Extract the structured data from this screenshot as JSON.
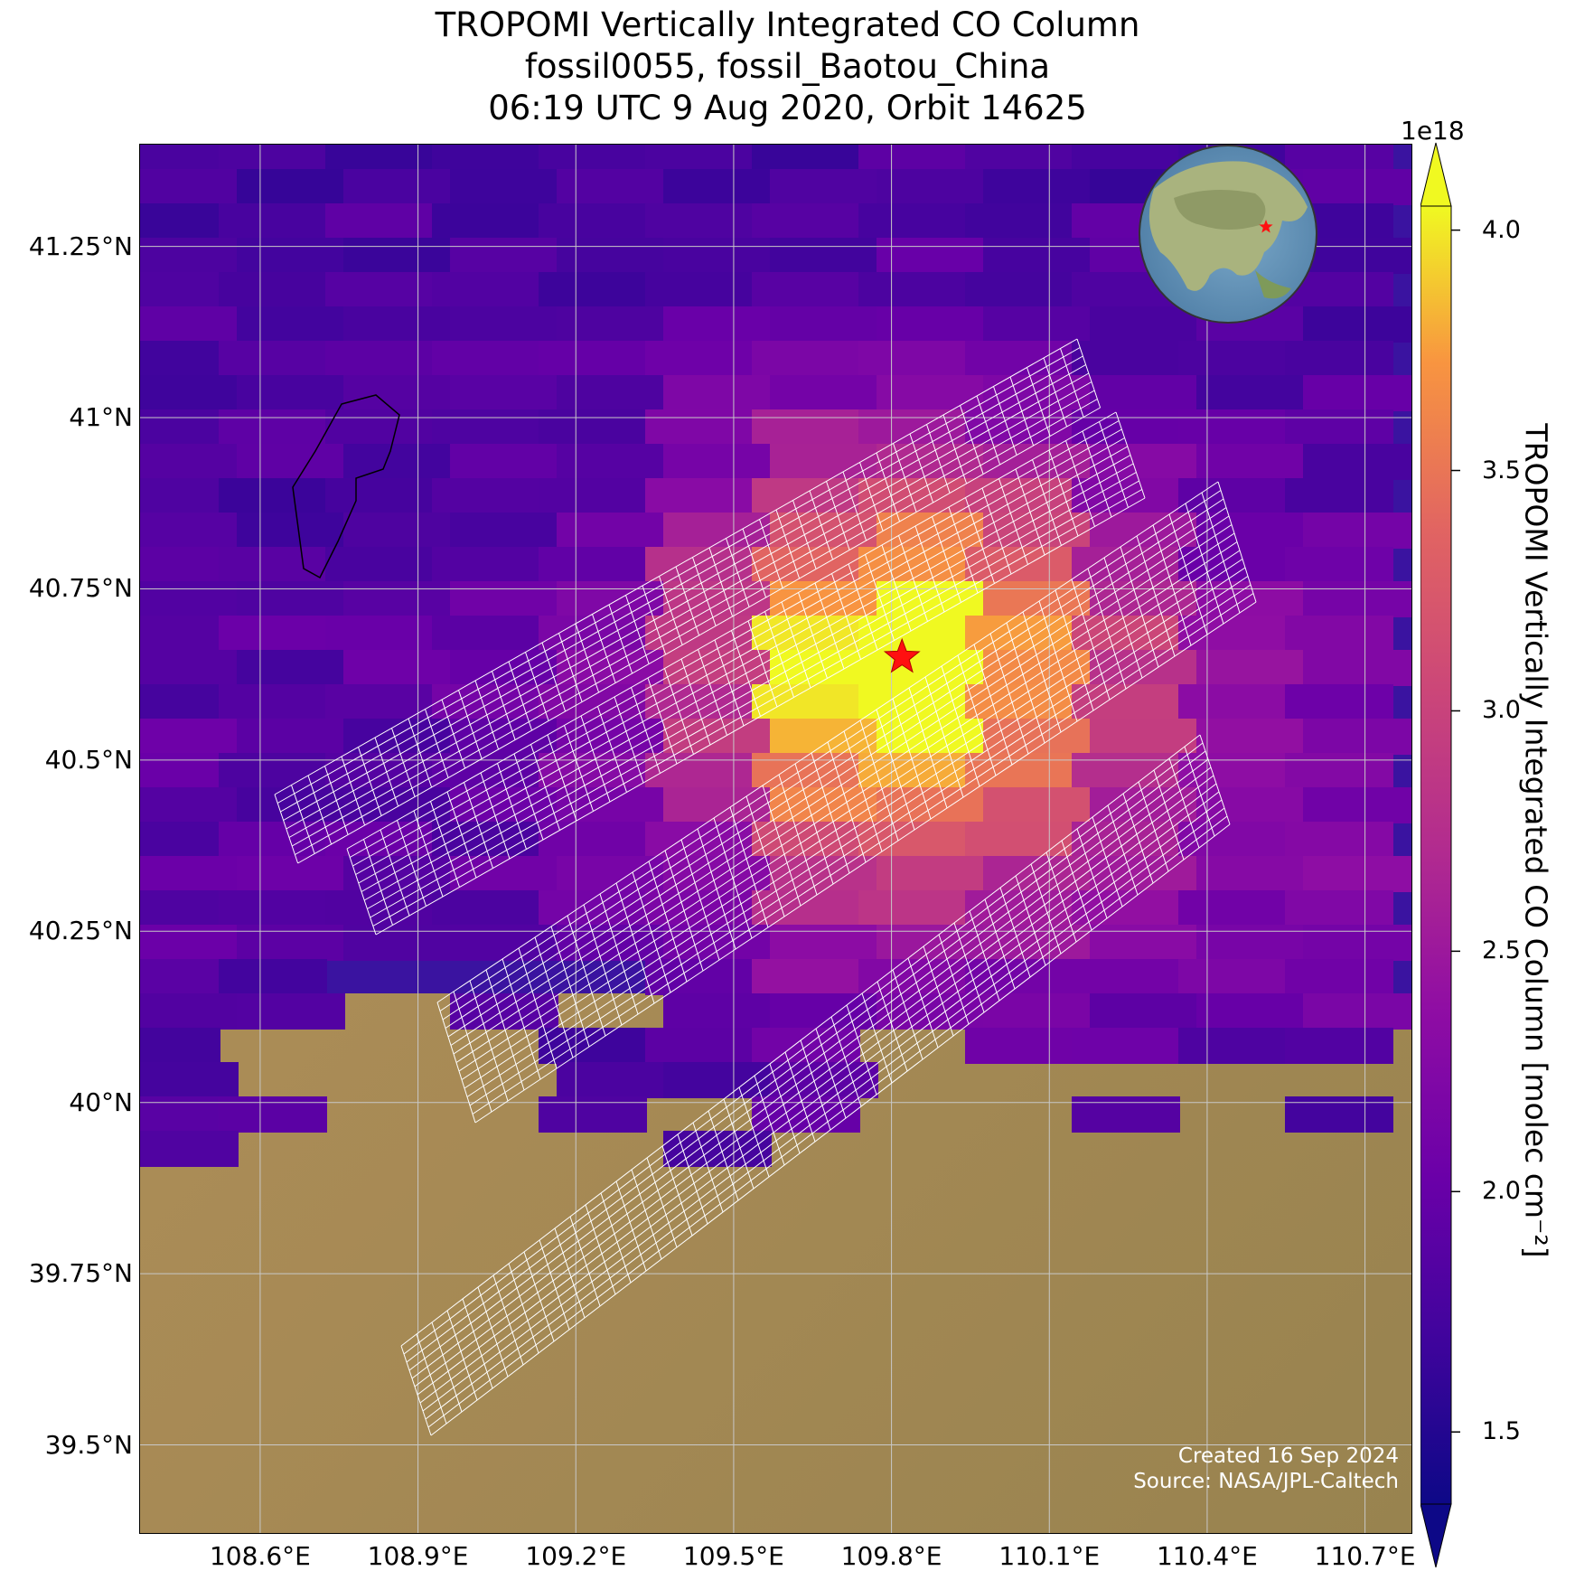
{
  "title": {
    "line1": "TROPOMI Vertically Integrated CO Column",
    "line2": "fossil0055, fossil_Baotou_China",
    "line3": "06:19 UTC 9 Aug 2020, Orbit 14625"
  },
  "map": {
    "lon_range": [
      108.37,
      110.79
    ],
    "lat_range": [
      39.37,
      41.4
    ],
    "lat_ticks": [
      "41.25°N",
      "41°N",
      "40.75°N",
      "40.5°N",
      "40.25°N",
      "40°N",
      "39.75°N",
      "39.5°N"
    ],
    "lat_values": [
      41.25,
      41.0,
      40.75,
      40.5,
      40.25,
      40.0,
      39.75,
      39.5
    ],
    "lon_ticks": [
      "108.6°E",
      "108.9°E",
      "109.2°E",
      "109.5°E",
      "109.8°E",
      "110.1°E",
      "110.4°E",
      "110.7°E"
    ],
    "lon_values": [
      108.6,
      108.9,
      109.2,
      109.5,
      109.8,
      110.1,
      110.4,
      110.7
    ],
    "target": {
      "lon": 109.82,
      "lat": 40.65,
      "marker": "red-star-icon"
    },
    "gridline_color": "#c8c8c8",
    "grid": true
  },
  "credit": {
    "created": "Created 16 Sep 2024",
    "source": "Source: NASA/JPL-Caltech"
  },
  "colorbar": {
    "label": "TROPOMI Vertically Integrated CO Column [molec cm⁻²]",
    "exponent": "1e18",
    "range": [
      1.35,
      4.05
    ],
    "ticks": [
      "4.0",
      "3.5",
      "3.0",
      "2.5",
      "2.0",
      "1.5"
    ],
    "tick_values": [
      4.0,
      3.5,
      3.0,
      2.5,
      2.0,
      1.5
    ],
    "colormap": "plasma",
    "extend": "both"
  },
  "globe_inset": {
    "icon": "globe-icon",
    "marker": "red-star-icon"
  }
}
